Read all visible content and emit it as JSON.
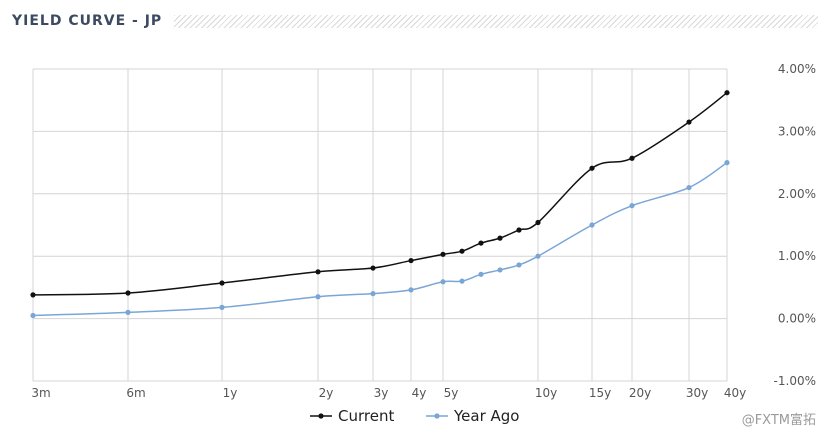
{
  "header": {
    "title": "YIELD CURVE - JP"
  },
  "watermark": "@FXTM富拓",
  "chart_data": {
    "type": "line",
    "title": "YIELD CURVE - JP",
    "xlabel": "",
    "ylabel": "",
    "x_ticks": [
      {
        "label": "3m",
        "m": 3
      },
      {
        "label": "6m",
        "m": 6
      },
      {
        "label": "1y",
        "m": 12
      },
      {
        "label": "2y",
        "m": 24
      },
      {
        "label": "3y",
        "m": 36
      },
      {
        "label": "4y",
        "m": 48
      },
      {
        "label": "5y",
        "m": 60
      },
      {
        "label": "10y",
        "m": 120
      },
      {
        "label": "15y",
        "m": 180
      },
      {
        "label": "20y",
        "m": 240
      },
      {
        "label": "30y",
        "m": 360
      },
      {
        "label": "40y",
        "m": 480
      }
    ],
    "y_ticks": [
      "4.00%",
      "3.00%",
      "2.00%",
      "1.00%",
      "0.00%",
      "-1.00%"
    ],
    "ylim": [
      -1,
      4
    ],
    "grid": true,
    "legend_position": "bottom",
    "series": [
      {
        "name": "Current",
        "color": "#111111",
        "points": [
          {
            "m": 3,
            "y": 0.38
          },
          {
            "m": 6,
            "y": 0.41
          },
          {
            "m": 12,
            "y": 0.57
          },
          {
            "m": 24,
            "y": 0.75
          },
          {
            "m": 36,
            "y": 0.81
          },
          {
            "m": 48,
            "y": 0.93
          },
          {
            "m": 60,
            "y": 1.03
          },
          {
            "m": 72,
            "y": 1.08
          },
          {
            "m": 84,
            "y": 1.21
          },
          {
            "m": 96,
            "y": 1.29
          },
          {
            "m": 108,
            "y": 1.42
          },
          {
            "m": 120,
            "y": 1.54
          },
          {
            "m": 180,
            "y": 2.41
          },
          {
            "m": 240,
            "y": 2.57
          },
          {
            "m": 360,
            "y": 3.15
          },
          {
            "m": 480,
            "y": 3.62
          }
        ]
      },
      {
        "name": "Year Ago",
        "color": "#7aa6d6",
        "points": [
          {
            "m": 3,
            "y": 0.05
          },
          {
            "m": 6,
            "y": 0.1
          },
          {
            "m": 12,
            "y": 0.18
          },
          {
            "m": 24,
            "y": 0.35
          },
          {
            "m": 36,
            "y": 0.4
          },
          {
            "m": 48,
            "y": 0.46
          },
          {
            "m": 60,
            "y": 0.59
          },
          {
            "m": 72,
            "y": 0.6
          },
          {
            "m": 84,
            "y": 0.71
          },
          {
            "m": 96,
            "y": 0.78
          },
          {
            "m": 108,
            "y": 0.86
          },
          {
            "m": 120,
            "y": 1.0
          },
          {
            "m": 180,
            "y": 1.5
          },
          {
            "m": 240,
            "y": 1.81
          },
          {
            "m": 360,
            "y": 2.1
          },
          {
            "m": 480,
            "y": 2.5
          }
        ]
      }
    ]
  }
}
